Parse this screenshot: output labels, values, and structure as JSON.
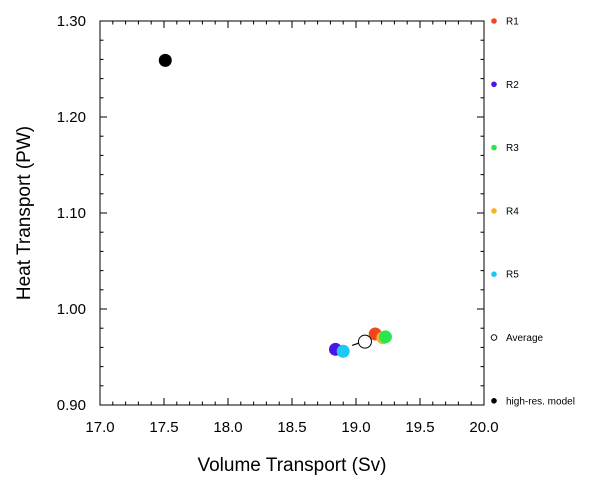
{
  "chart_data": {
    "type": "scatter",
    "xlabel": "Volume Transport (Sv)",
    "ylabel": "Heat Transport (PW)",
    "xlim": [
      17.0,
      20.0
    ],
    "ylim": [
      0.9,
      1.3
    ],
    "x_ticks": [
      "17.0",
      "17.5",
      "18.0",
      "18.5",
      "19.0",
      "19.5",
      "20.0"
    ],
    "y_ticks": [
      "0.90",
      "1.00",
      "1.10",
      "1.20",
      "1.30"
    ],
    "grid": false,
    "legend_position": "right",
    "series": [
      {
        "name": "R1",
        "color": "#f0461e",
        "x": 19.15,
        "y": 0.974
      },
      {
        "name": "R2",
        "color": "#4b14e6",
        "x": 18.84,
        "y": 0.958
      },
      {
        "name": "R3",
        "color": "#28e650",
        "x": 19.23,
        "y": 0.971
      },
      {
        "name": "R4",
        "color": "#f5b428",
        "x": 19.21,
        "y": 0.97
      },
      {
        "name": "R5",
        "color": "#1ec8f5",
        "x": 18.9,
        "y": 0.956
      },
      {
        "name": "Average",
        "color": "#000000",
        "marker": "open-circle",
        "x": 19.07,
        "y": 0.966
      },
      {
        "name": "high-res. model",
        "color": "#000000",
        "x": 17.51,
        "y": 1.259
      }
    ],
    "spread_line": {
      "x": [
        18.97,
        19.16
      ],
      "y": [
        0.962,
        0.971
      ]
    }
  }
}
